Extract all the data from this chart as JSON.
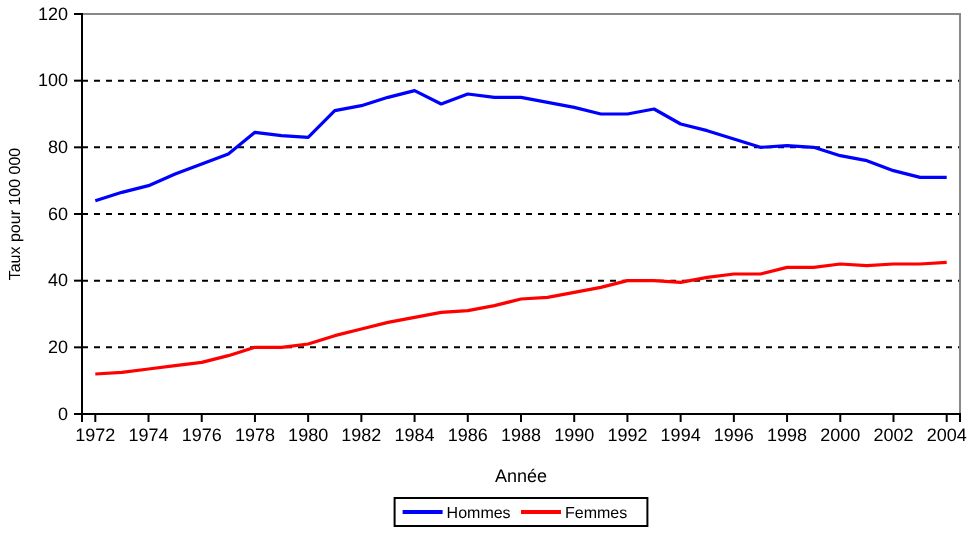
{
  "chart_data": {
    "type": "line",
    "xlabel": "Année",
    "ylabel": "Taux pour 100 000",
    "x": [
      1972,
      1973,
      1974,
      1975,
      1976,
      1977,
      1978,
      1979,
      1980,
      1981,
      1982,
      1983,
      1984,
      1985,
      1986,
      1987,
      1988,
      1989,
      1990,
      1991,
      1992,
      1993,
      1994,
      1995,
      1996,
      1997,
      1998,
      1999,
      2000,
      2001,
      2002,
      2003,
      2004
    ],
    "series": [
      {
        "name": "Hommes",
        "color": "#0000ff",
        "values": [
          64,
          66.5,
          68.5,
          72,
          75,
          78,
          84.5,
          83.5,
          83,
          91,
          92.5,
          95,
          97,
          93,
          96,
          95,
          95,
          93.5,
          92,
          90,
          90,
          91.5,
          87,
          85,
          82.5,
          80,
          80.5,
          80,
          77.5,
          76,
          73,
          71,
          71
        ]
      },
      {
        "name": "Femmes",
        "color": "#ff0000",
        "values": [
          12,
          12.5,
          13.5,
          14.5,
          15.5,
          17.5,
          20,
          20,
          21,
          23.5,
          25.5,
          27.5,
          29,
          30.5,
          31,
          32.5,
          34.5,
          35,
          36.5,
          38,
          40,
          40,
          39.5,
          41,
          42,
          42,
          44,
          44,
          45,
          44.5,
          45,
          45,
          45.5
        ]
      }
    ],
    "xlim": [
      1971.5,
      2004.5
    ],
    "xticks": [
      1972,
      1974,
      1976,
      1978,
      1980,
      1982,
      1984,
      1986,
      1988,
      1990,
      1992,
      1994,
      1996,
      1998,
      2000,
      2002,
      2004
    ],
    "ylim": [
      0,
      120
    ],
    "yticks": [
      0,
      20,
      40,
      60,
      80,
      100,
      120
    ],
    "grid": "y",
    "legend": "bottom",
    "line_style": "solid",
    "marker": "none"
  }
}
